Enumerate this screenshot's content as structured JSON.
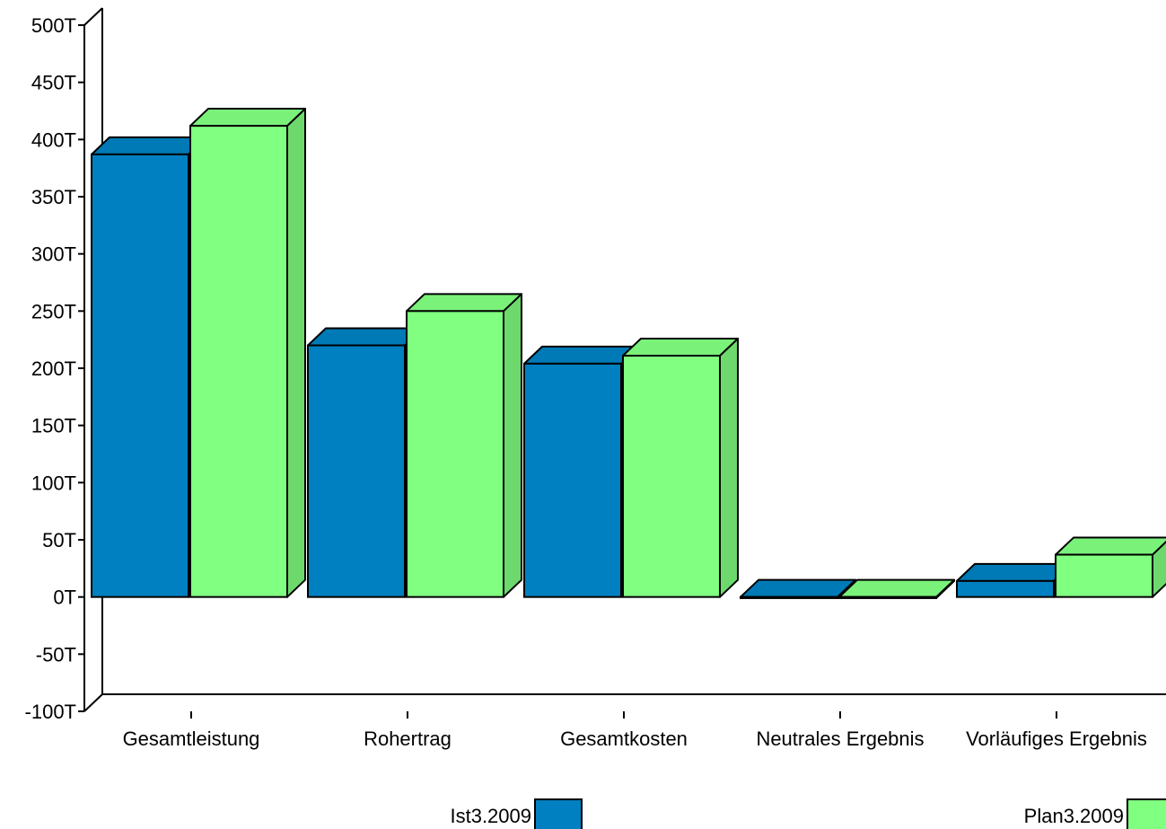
{
  "chart_data": {
    "type": "bar",
    "categories": [
      "Gesamtleistung",
      "Rohertrag",
      "Gesamtkosten",
      "Neutrales Ergebnis",
      "Vorläufiges Ergebnis"
    ],
    "series": [
      {
        "name": "Ist3.2009",
        "values": [
          387,
          220,
          204,
          -1,
          14
        ],
        "color": "#0080C0"
      },
      {
        "name": "Plan3.2009",
        "values": [
          412,
          250,
          211,
          -1,
          37
        ],
        "color": "#80FF80"
      }
    ],
    "ylim": [
      -100,
      500
    ],
    "y_ticks": [
      "500T",
      "450T",
      "400T",
      "350T",
      "300T",
      "250T",
      "200T",
      "150T",
      "100T",
      "50T",
      "0T",
      "-50T",
      "-100T"
    ],
    "y_unit": "T",
    "grid": false,
    "legend_position": "bottom",
    "style": "3d"
  }
}
